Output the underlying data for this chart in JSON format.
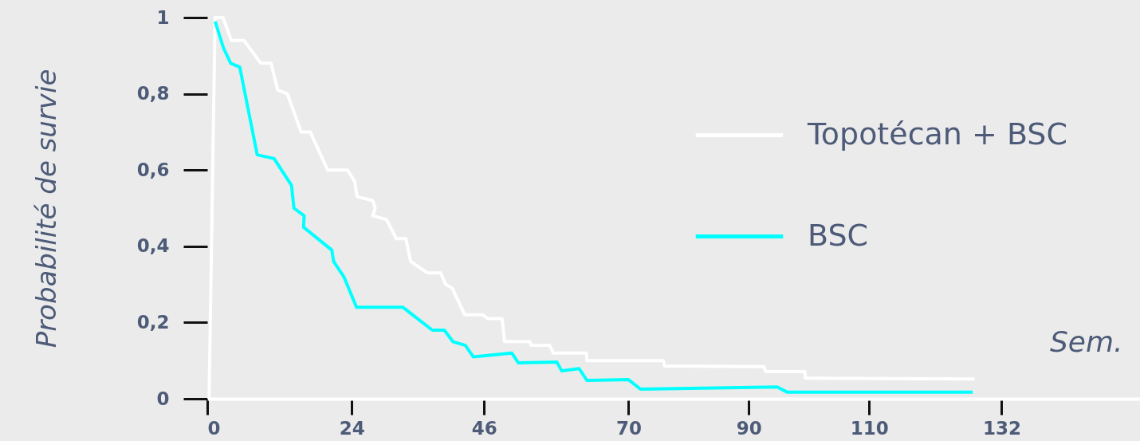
{
  "chart_data": {
    "type": "line",
    "xlabel": "Sem.",
    "ylabel": "Probabilité de survie",
    "xlim": [
      0,
      155
    ],
    "xticks": [
      0,
      24,
      46,
      70,
      90,
      110,
      132
    ],
    "ylim": [
      0,
      1
    ],
    "yticks": [
      0,
      {
        "value": 0.2,
        "label": "0,2"
      },
      {
        "value": 0.4,
        "label": "0,4"
      },
      {
        "value": 0.6,
        "label": "0,6"
      },
      {
        "value": 0.8,
        "label": "0,8"
      },
      1
    ],
    "grid": false,
    "legend": "top right",
    "marker": "none",
    "line_style": "solid",
    "series": [
      {
        "name": "Topotécan + BSC",
        "color": "#ffffff",
        "x": [
          0.3,
          1.3,
          2.6,
          3.3,
          4.0,
          6.1,
          8.9,
          10.6,
          11.7,
          13.3,
          15.6,
          17.1,
          20.0,
          23.3,
          24.5,
          24.9,
          27.5,
          27.9,
          27.5,
          29.8,
          31.4,
          33.0,
          33.8,
          36.6,
          38.8,
          39.6,
          40.7,
          42.8,
          45.8,
          46.6,
          49.0,
          49.4,
          53.6,
          53.8,
          56.9,
          57.5,
          63.0,
          63.1,
          75.8,
          76.0,
          92.5,
          92.8,
          99.3,
          99.4,
          127.5
        ],
        "values": [
          0,
          1.0,
          1.0,
          0.97,
          0.94,
          0.94,
          0.88,
          0.88,
          0.81,
          0.8,
          0.7,
          0.7,
          0.6,
          0.6,
          0.57,
          0.53,
          0.52,
          0.5,
          0.48,
          0.47,
          0.42,
          0.42,
          0.36,
          0.33,
          0.33,
          0.3,
          0.29,
          0.22,
          0.22,
          0.21,
          0.21,
          0.15,
          0.15,
          0.14,
          0.14,
          0.12,
          0.12,
          0.1,
          0.1,
          0.086,
          0.084,
          0.071,
          0.071,
          0.054,
          0.052
        ]
      },
      {
        "name": "BSC",
        "color": "#00ffff",
        "x": [
          1.3,
          2.7,
          3.9,
          5.4,
          8.3,
          11.1,
          14.0,
          14.4,
          16.1,
          16.0,
          20.7,
          21.0,
          22.7,
          24.8,
          32.5,
          37.4,
          39.4,
          40.8,
          42.9,
          44.2,
          50.6,
          51.7,
          58.1,
          58.9,
          61.8,
          63.1,
          70.0,
          72.0,
          94.7,
          96.4,
          127.2
        ],
        "values": [
          0.99,
          0.92,
          0.88,
          0.87,
          0.64,
          0.63,
          0.56,
          0.5,
          0.48,
          0.45,
          0.39,
          0.36,
          0.32,
          0.24,
          0.24,
          0.18,
          0.18,
          0.15,
          0.14,
          0.11,
          0.12,
          0.094,
          0.096,
          0.073,
          0.079,
          0.048,
          0.05,
          0.025,
          0.031,
          0.017,
          0.017
        ]
      }
    ]
  }
}
